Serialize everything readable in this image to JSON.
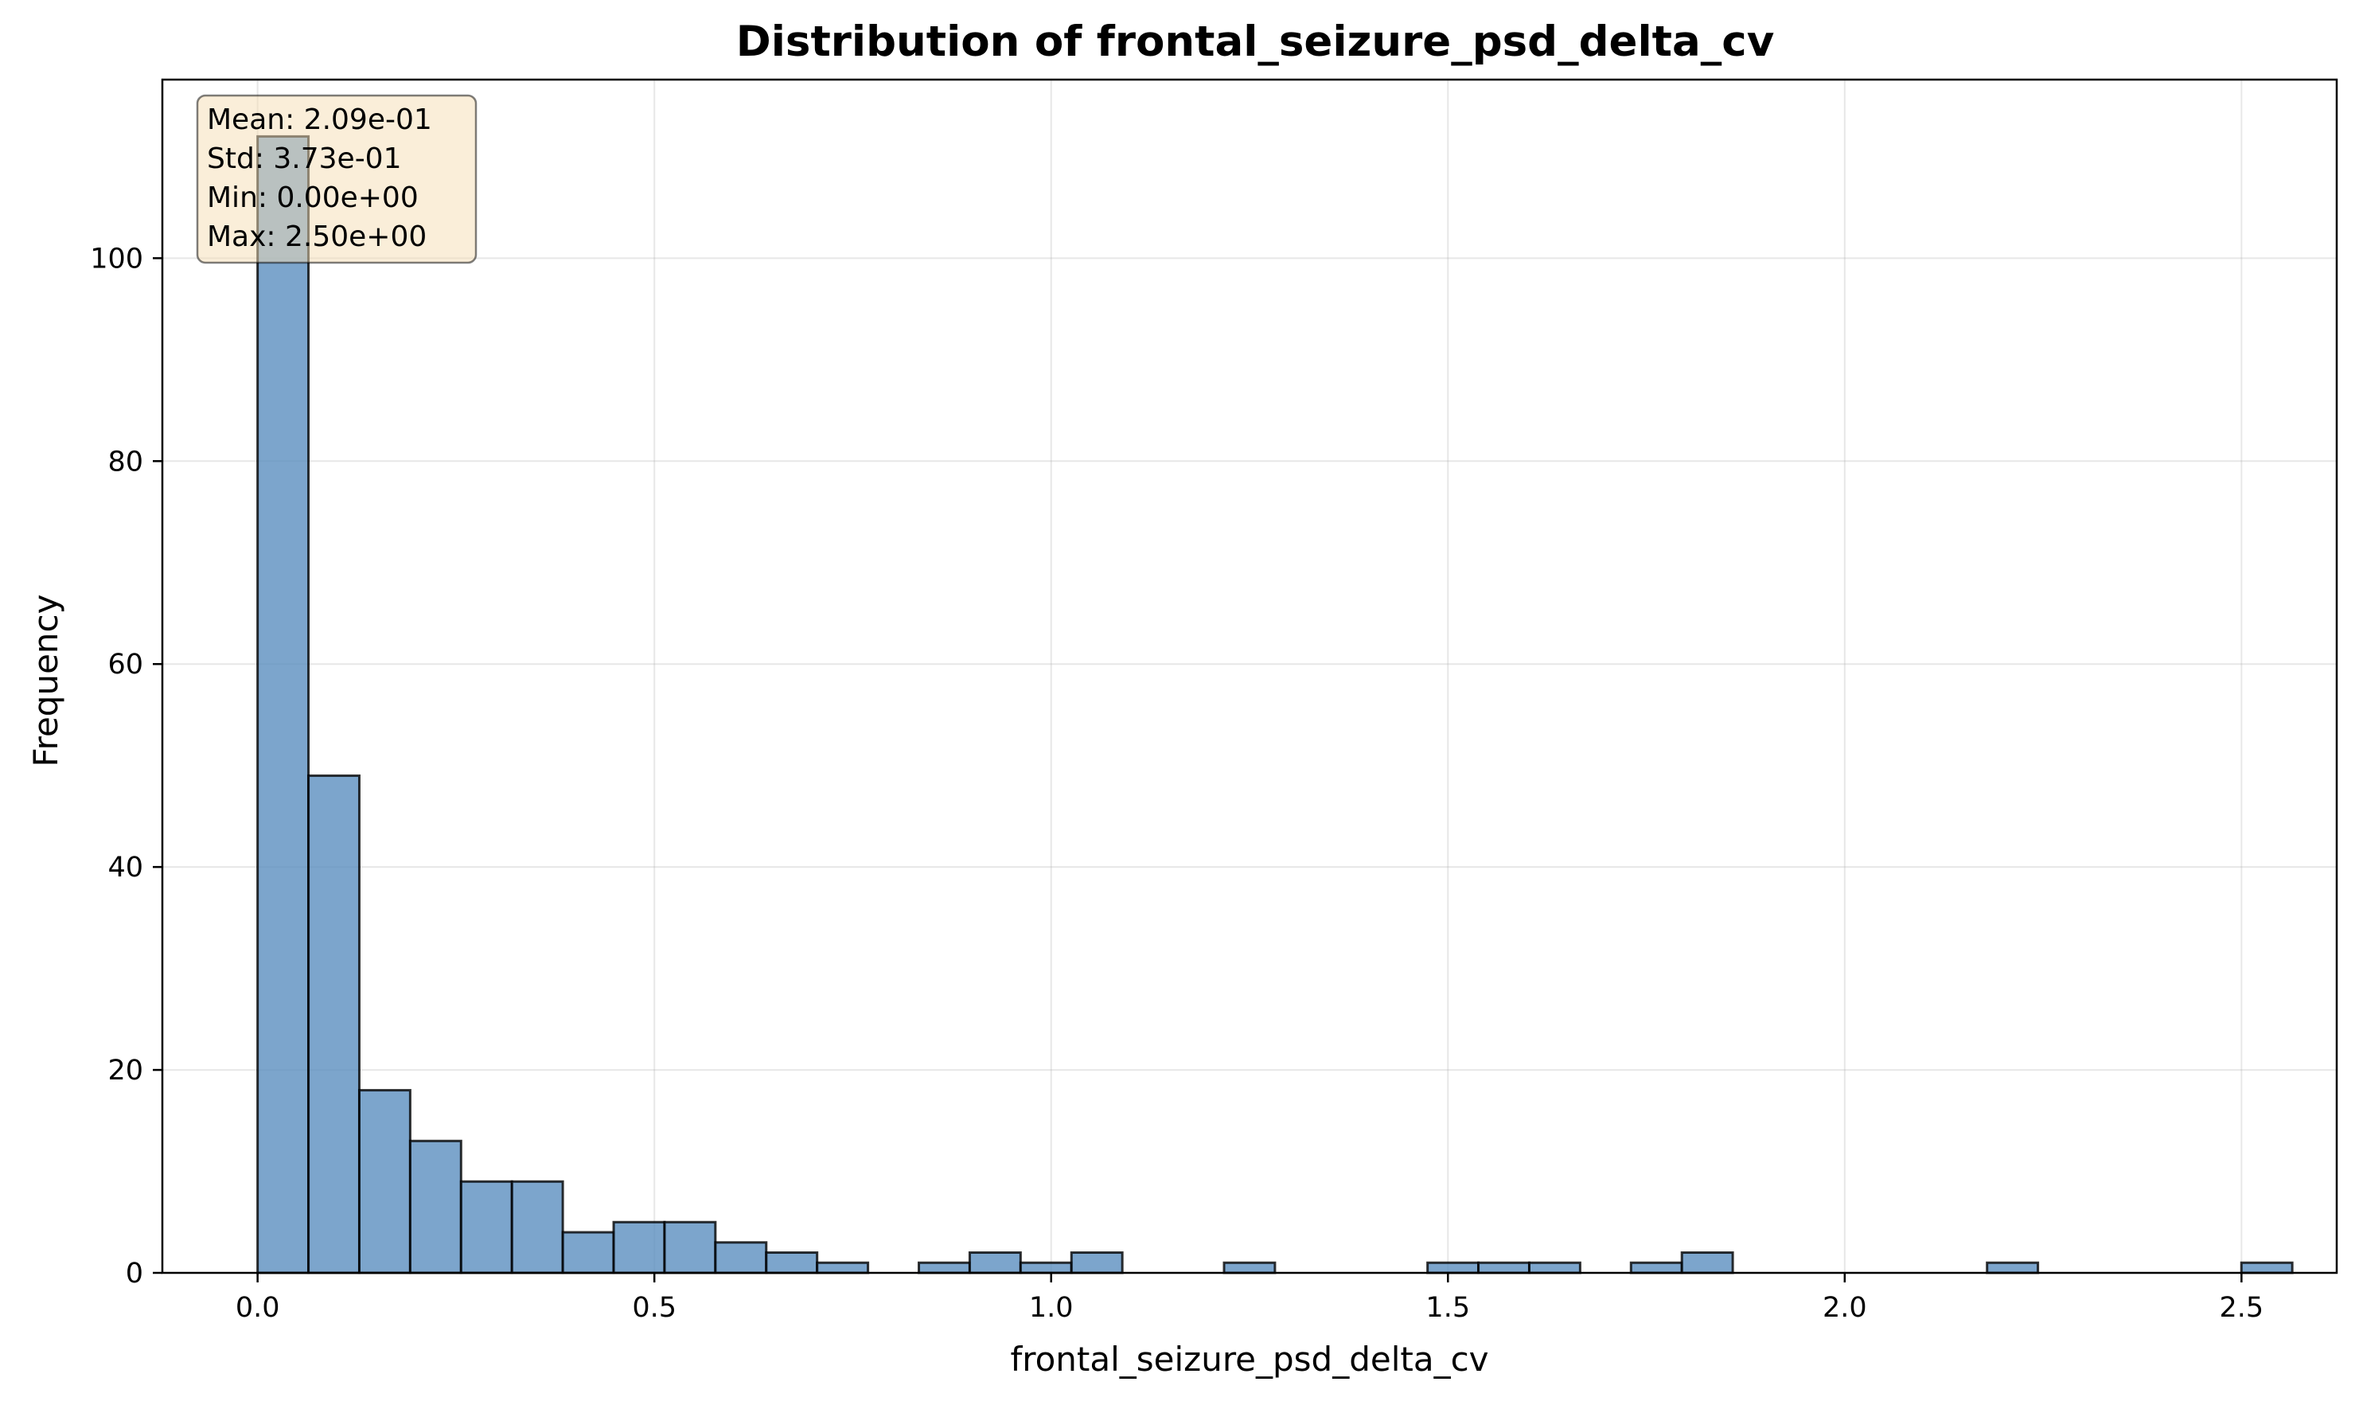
{
  "chart_data": {
    "type": "bar",
    "title": "Distribution of frontal_seizure_psd_delta_cv",
    "xlabel": "frontal_seizure_psd_delta_cv",
    "ylabel": "Frequency",
    "bin_start": 0.0,
    "bin_width": 0.0641,
    "counts": [
      112,
      49,
      18,
      13,
      9,
      9,
      4,
      5,
      5,
      3,
      2,
      1,
      0,
      1,
      2,
      1,
      2,
      0,
      0,
      1,
      0,
      0,
      0,
      1,
      1,
      1,
      0,
      1,
      2,
      0,
      0,
      0,
      0,
      0,
      1,
      0,
      0,
      0,
      0,
      1
    ],
    "xlim": [
      -0.12,
      2.62
    ],
    "ylim": [
      0,
      117.6
    ],
    "xticks": [
      0.0,
      0.5,
      1.0,
      1.5,
      2.0,
      2.5
    ],
    "xtick_labels": [
      "0.0",
      "0.5",
      "1.0",
      "1.5",
      "2.0",
      "2.5"
    ],
    "yticks": [
      0,
      20,
      40,
      60,
      80,
      100
    ],
    "ytick_labels": [
      "0",
      "20",
      "40",
      "60",
      "80",
      "100"
    ],
    "grid": true,
    "bar_color": "#5b8fbf",
    "stats_box": {
      "mean": "Mean: 2.09e-01",
      "std": "Std: 3.73e-01",
      "min": "Min: 0.00e+00",
      "max": "Max: 2.50e+00",
      "position": "top-left"
    }
  }
}
